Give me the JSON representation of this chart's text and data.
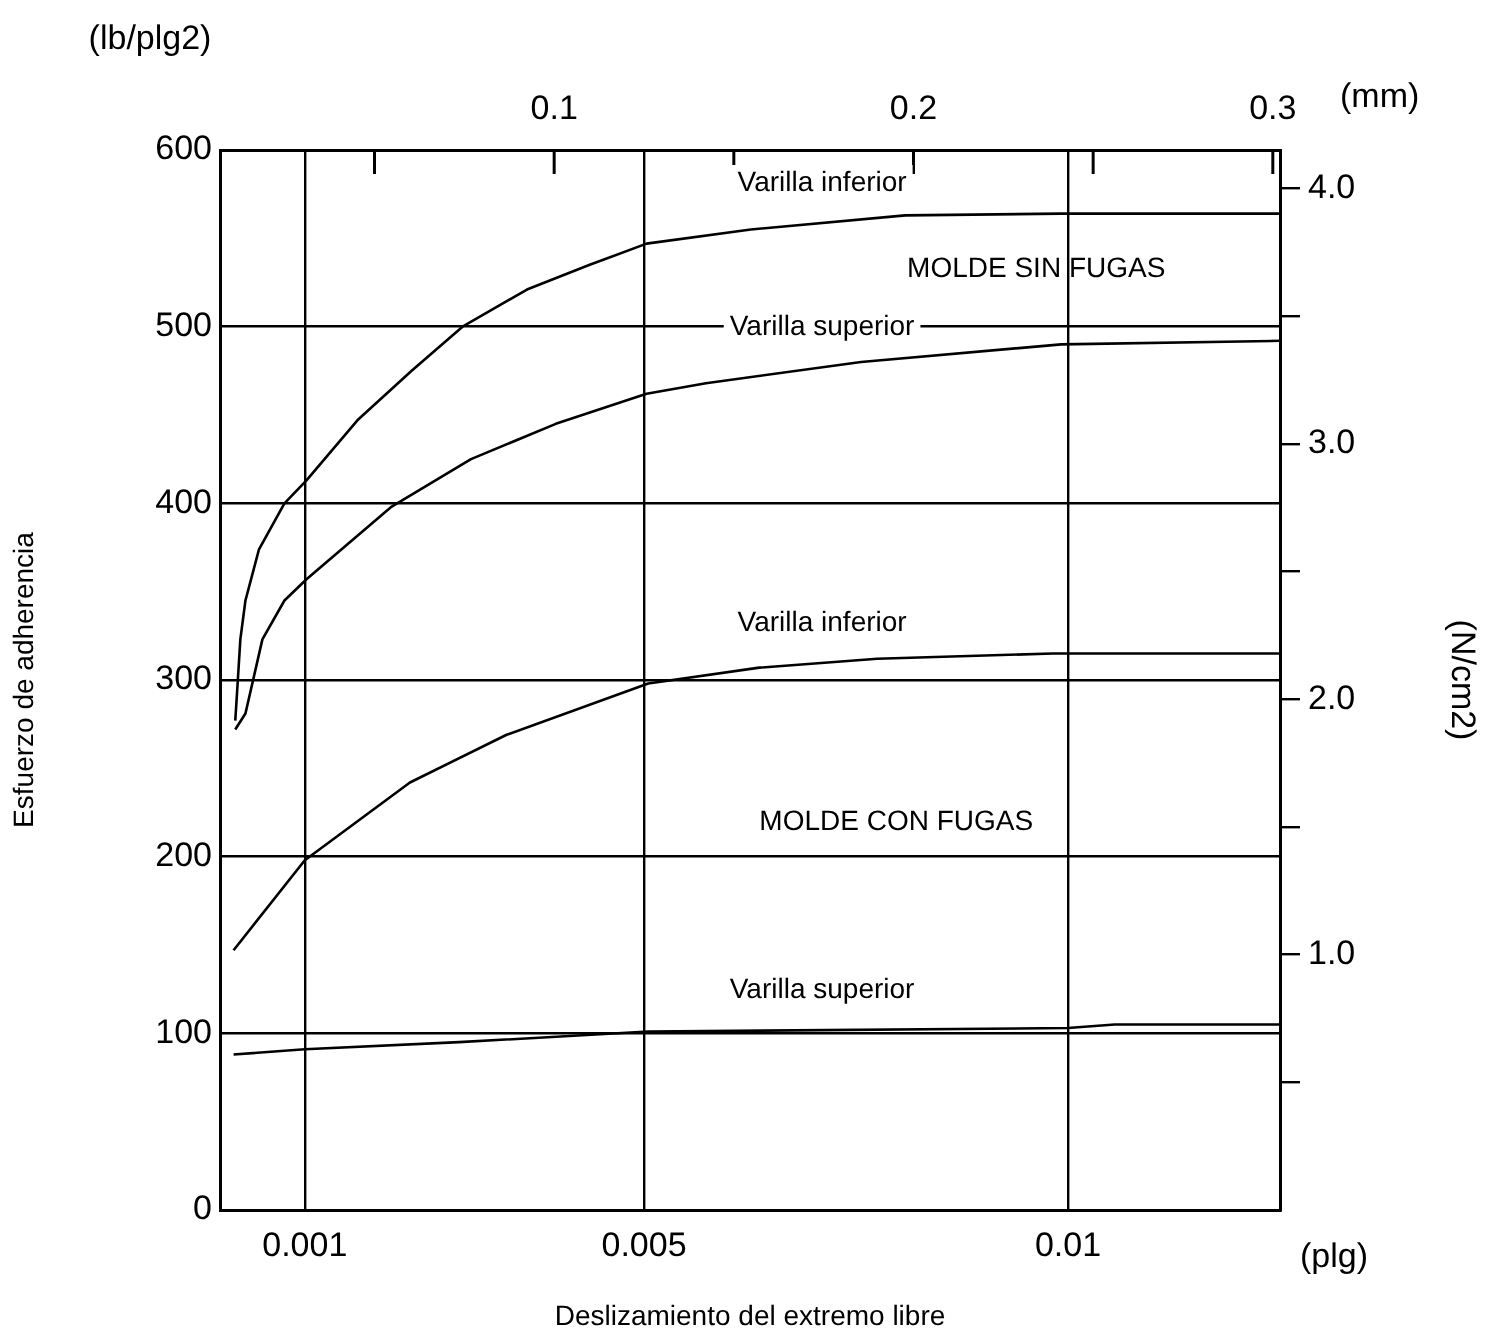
{
  "chart_data": {
    "type": "line",
    "xlabel": "Deslizamiento del extremo libre",
    "ylabel": "Esfuerzo de adherencia",
    "y2label": "(N/cm2)",
    "xlim": [
      0,
      0.0125
    ],
    "xticks": [
      0.001,
      0.005,
      0.01
    ],
    "x2lim": [
      0.007,
      0.302
    ],
    "x2ticks": [
      {
        "value": 0.05,
        "label": null
      },
      0.1,
      {
        "value": 0.15,
        "label": null
      },
      0.2,
      {
        "value": 0.25,
        "label": null
      },
      0.3
    ],
    "ylim": [
      0,
      600
    ],
    "yticks": [
      0,
      100,
      200,
      300,
      400,
      500,
      600
    ],
    "y2lim": [
      0,
      4.15
    ],
    "y2ticks": [
      {
        "value": 0.5,
        "label": null
      },
      {
        "value": 1,
        "label": "1.0"
      },
      {
        "value": 1.5,
        "label": null
      },
      {
        "value": 2,
        "label": "2.0"
      },
      {
        "value": 2.5,
        "label": null
      },
      {
        "value": 3,
        "label": "3.0"
      },
      {
        "value": 3.5,
        "label": null
      },
      {
        "value": 4,
        "label": "4.0"
      }
    ],
    "grid": true,
    "legend": false,
    "marker": "none",
    "line_style": "solid",
    "series": [
      {
        "name": "Varilla inferior",
        "color": "#000000",
        "x": [
          0.00018,
          0.0002,
          0.00024,
          0.0003,
          0.00046,
          0.00076,
          0.00102,
          0.00162,
          0.00226,
          0.00286,
          0.00362,
          0.00436,
          0.00503,
          0.00626,
          0.00808,
          0.00991,
          0.0125
        ],
        "values": [
          277,
          292,
          323,
          345,
          374,
          400,
          413,
          447,
          475,
          500,
          521,
          535,
          547,
          555,
          563,
          564,
          564
        ]
      },
      {
        "name": "Varilla superior",
        "color": "#000000",
        "x": [
          0.00018,
          0.0003,
          0.0005,
          0.00076,
          0.00102,
          0.00202,
          0.00296,
          0.00396,
          0.00503,
          0.00573,
          0.00756,
          0.00992,
          0.0125
        ],
        "values": [
          272,
          281,
          323,
          345,
          357,
          398,
          425,
          445,
          462,
          468,
          480,
          490,
          492
        ]
      },
      {
        "name": "Varilla inferior",
        "color": "#000000",
        "x": [
          0.00016,
          0.001,
          0.00224,
          0.00338,
          0.00505,
          0.00636,
          0.00775,
          0.00982,
          0.0125
        ],
        "values": [
          147,
          198,
          242,
          269,
          298,
          307,
          312,
          315,
          315
        ]
      },
      {
        "name": "Varilla superior",
        "color": "#000000",
        "x": [
          0.00016,
          0.001,
          0.00282,
          0.00505,
          0.01,
          0.01055,
          0.0125
        ],
        "values": [
          88,
          91,
          95,
          101,
          103,
          105,
          105
        ]
      }
    ],
    "annotations": [
      "(lb/plg2)",
      "(mm)",
      "(plg)",
      "MOLDE SIN FUGAS",
      "MOLDE CON FUGAS"
    ]
  }
}
